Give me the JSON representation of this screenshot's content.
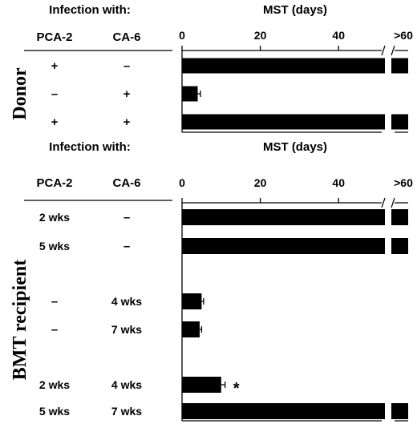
{
  "chart_data": [
    {
      "type": "bar",
      "orientation": "horizontal",
      "panel": "Donor",
      "table_title": "Infection with:",
      "columns": [
        "PCA-2",
        "CA-6"
      ],
      "rows": [
        {
          "pca2": "+",
          "ca6": "–",
          "value": 60,
          "error": 0,
          "note": "",
          "value_label": ">60"
        },
        {
          "pca2": "–",
          "ca6": "+",
          "value": 4,
          "error": 0.7,
          "note": "",
          "value_label": ""
        },
        {
          "pca2": "+",
          "ca6": "+",
          "value": 60,
          "error": 0,
          "note": "",
          "value_label": ">60"
        }
      ],
      "axis": {
        "title": "MST (days)",
        "ticks": [
          "0",
          "20",
          "40",
          ">60"
        ],
        "range": [
          0,
          60
        ],
        "break_between": [
          53,
          57
        ]
      }
    },
    {
      "type": "bar",
      "orientation": "horizontal",
      "panel": "BMT recipient",
      "table_title": "Infection with:",
      "columns": [
        "PCA-2",
        "CA-6"
      ],
      "rows": [
        {
          "pca2": "2 wks",
          "ca6": "–",
          "value": 60,
          "error": 0,
          "note": "",
          "value_label": ">60"
        },
        {
          "pca2": "5 wks",
          "ca6": "–",
          "value": 60,
          "error": 0,
          "note": "",
          "value_label": ">60"
        },
        {
          "pca2": "–",
          "ca6": "4 wks",
          "value": 5,
          "error": 0.5,
          "note": "",
          "value_label": ""
        },
        {
          "pca2": "–",
          "ca6": "7 wks",
          "value": 4.5,
          "error": 0.5,
          "note": "",
          "value_label": ""
        },
        {
          "pca2": "2 wks",
          "ca6": "4 wks",
          "value": 10,
          "error": 1,
          "note": "*",
          "value_label": ""
        },
        {
          "pca2": "5 wks",
          "ca6": "7 wks",
          "value": 60,
          "error": 0,
          "note": "",
          "value_label": ">60"
        }
      ],
      "axis": {
        "title": "MST (days)",
        "ticks": [
          "0",
          "20",
          "40",
          ">60"
        ],
        "range": [
          0,
          60
        ],
        "break_between": [
          53,
          57
        ]
      }
    }
  ]
}
